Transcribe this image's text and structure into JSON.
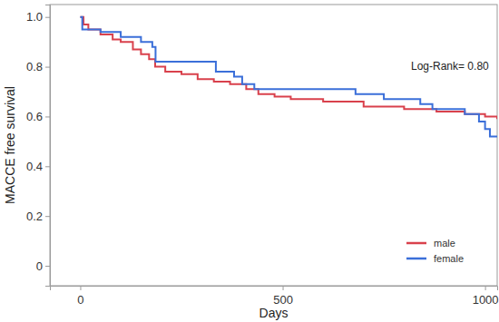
{
  "chart_data": {
    "type": "line",
    "x_label": "Days",
    "y_label": "MACCE free survival",
    "annotation": "Log-Rank= 0.80",
    "xlim": [
      -75,
      1030
    ],
    "xticks": [
      0,
      500,
      1000
    ],
    "ylim": [
      -0.08,
      1.05
    ],
    "yticks": [
      0,
      0.2,
      0.4,
      0.6,
      0.8,
      {
        "value": 1,
        "label": "1.0"
      }
    ],
    "legend": "lower right",
    "grid": false,
    "series": [
      {
        "name": "male",
        "color": "#d9414c",
        "line_style": "step",
        "x": [
          0,
          8,
          20,
          50,
          80,
          100,
          130,
          150,
          170,
          185,
          210,
          250,
          290,
          330,
          370,
          410,
          440,
          480,
          520,
          600,
          700,
          800,
          880,
          950,
          1000,
          1030
        ],
        "values": [
          1.0,
          0.97,
          0.95,
          0.93,
          0.91,
          0.9,
          0.87,
          0.85,
          0.83,
          0.8,
          0.78,
          0.77,
          0.75,
          0.74,
          0.73,
          0.71,
          0.69,
          0.68,
          0.67,
          0.66,
          0.64,
          0.63,
          0.62,
          0.61,
          0.6,
          0.59
        ]
      },
      {
        "name": "female",
        "color": "#3b6fd9",
        "line_style": "step",
        "x": [
          0,
          5,
          50,
          100,
          150,
          178,
          186,
          320,
          335,
          380,
          400,
          430,
          660,
          680,
          750,
          840,
          870,
          950,
          985,
          1000,
          1012,
          1030
        ],
        "values": [
          1.0,
          0.95,
          0.94,
          0.92,
          0.9,
          0.88,
          0.82,
          0.82,
          0.78,
          0.76,
          0.73,
          0.71,
          0.71,
          0.69,
          0.67,
          0.65,
          0.63,
          0.61,
          0.58,
          0.55,
          0.52,
          0.52
        ]
      }
    ]
  }
}
